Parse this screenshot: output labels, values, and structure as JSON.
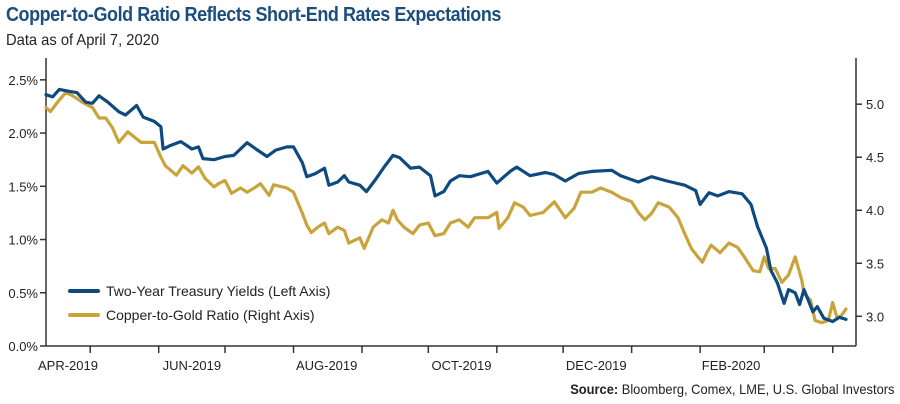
{
  "header": {
    "title": "Copper-to-Gold Ratio Reflects Short-End Rates Expectations",
    "subtitle": "Data as of April 7, 2020"
  },
  "footer": {
    "source_label": "Source:",
    "source_text": " Bloomberg, Comex, LME, U.S. Global Investors"
  },
  "colors": {
    "treasury": "#0f4a7f",
    "copper_gold": "#c9a43c",
    "axis": "#333333"
  },
  "chart_data": {
    "type": "line",
    "title": "Copper-to-Gold Ratio Reflects Short-End Rates Expectations",
    "subtitle": "Data as of April 7, 2020",
    "x_range": [
      "2019-04-11",
      "2020-04-07"
    ],
    "x_ticks": [
      "2019-05-01",
      "2019-06-01",
      "2019-07-01",
      "2019-08-01",
      "2019-09-01",
      "2019-10-01",
      "2019-11-01",
      "2019-12-01",
      "2020-01-01",
      "2020-02-01",
      "2020-03-01",
      "2020-04-01"
    ],
    "x_tick_labels": [
      {
        "label": "APR-2019",
        "date": "2019-04-16"
      },
      {
        "label": "JUN-2019",
        "date": "2019-06-16"
      },
      {
        "label": "AUG-2019",
        "date": "2019-08-16"
      },
      {
        "label": "OCT-2019",
        "date": "2019-10-16"
      },
      {
        "label": "DEC-2019",
        "date": "2019-12-16"
      },
      {
        "label": "FEB-2020",
        "date": "2020-02-15"
      }
    ],
    "y_left": {
      "range": [
        0,
        2.63
      ],
      "ticks": [
        0,
        0.5,
        1.0,
        1.5,
        2.0,
        2.5
      ],
      "tick_labels": [
        "0.0%",
        "0.5%",
        "1.0%",
        "1.5%",
        "2.0%",
        "2.5%"
      ]
    },
    "y_right": {
      "range": [
        2.72,
        5.36
      ],
      "ticks": [
        3.0,
        3.5,
        4.0,
        4.5,
        5.0
      ],
      "tick_labels": [
        "3.0",
        "3.5",
        "4.0",
        "4.5",
        "5.0"
      ]
    },
    "grid": false,
    "legend_placement": "bottom-left",
    "series": [
      {
        "name": "Two-Year Treasury Yields (Left Axis)",
        "axis": "left",
        "points": [
          [
            "2019-04-11",
            2.36
          ],
          [
            "2019-04-14",
            2.34
          ],
          [
            "2019-04-17",
            2.41
          ],
          [
            "2019-04-22",
            2.39
          ],
          [
            "2019-04-25",
            2.38
          ],
          [
            "2019-04-29",
            2.29
          ],
          [
            "2019-05-02",
            2.28
          ],
          [
            "2019-05-05",
            2.35
          ],
          [
            "2019-05-09",
            2.29
          ],
          [
            "2019-05-14",
            2.2
          ],
          [
            "2019-05-17",
            2.17
          ],
          [
            "2019-05-22",
            2.26
          ],
          [
            "2019-05-25",
            2.15
          ],
          [
            "2019-05-30",
            2.11
          ],
          [
            "2019-06-02",
            2.06
          ],
          [
            "2019-06-03",
            1.85
          ],
          [
            "2019-06-06",
            1.88
          ],
          [
            "2019-06-11",
            1.92
          ],
          [
            "2019-06-16",
            1.85
          ],
          [
            "2019-06-19",
            1.87
          ],
          [
            "2019-06-21",
            1.76
          ],
          [
            "2019-06-26",
            1.75
          ],
          [
            "2019-07-01",
            1.78
          ],
          [
            "2019-07-05",
            1.79
          ],
          [
            "2019-07-11",
            1.91
          ],
          [
            "2019-07-15",
            1.85
          ],
          [
            "2019-07-20",
            1.78
          ],
          [
            "2019-07-24",
            1.84
          ],
          [
            "2019-07-29",
            1.87
          ],
          [
            "2019-08-01",
            1.87
          ],
          [
            "2019-08-05",
            1.72
          ],
          [
            "2019-08-07",
            1.59
          ],
          [
            "2019-08-11",
            1.62
          ],
          [
            "2019-08-15",
            1.67
          ],
          [
            "2019-08-17",
            1.51
          ],
          [
            "2019-08-21",
            1.54
          ],
          [
            "2019-08-24",
            1.6
          ],
          [
            "2019-08-26",
            1.54
          ],
          [
            "2019-08-31",
            1.51
          ],
          [
            "2019-09-03",
            1.45
          ],
          [
            "2019-09-07",
            1.56
          ],
          [
            "2019-09-11",
            1.68
          ],
          [
            "2019-09-15",
            1.79
          ],
          [
            "2019-09-18",
            1.77
          ],
          [
            "2019-09-23",
            1.67
          ],
          [
            "2019-09-27",
            1.68
          ],
          [
            "2019-10-02",
            1.6
          ],
          [
            "2019-10-04",
            1.41
          ],
          [
            "2019-10-08",
            1.45
          ],
          [
            "2019-10-11",
            1.55
          ],
          [
            "2019-10-15",
            1.6
          ],
          [
            "2019-10-20",
            1.59
          ],
          [
            "2019-10-28",
            1.64
          ],
          [
            "2019-11-01",
            1.53
          ],
          [
            "2019-11-07",
            1.64
          ],
          [
            "2019-11-10",
            1.68
          ],
          [
            "2019-11-16",
            1.6
          ],
          [
            "2019-11-23",
            1.63
          ],
          [
            "2019-11-27",
            1.61
          ],
          [
            "2019-12-02",
            1.55
          ],
          [
            "2019-12-08",
            1.62
          ],
          [
            "2019-12-14",
            1.64
          ],
          [
            "2019-12-23",
            1.65
          ],
          [
            "2019-12-27",
            1.6
          ],
          [
            "2020-01-04",
            1.54
          ],
          [
            "2020-01-10",
            1.59
          ],
          [
            "2020-01-17",
            1.55
          ],
          [
            "2020-01-25",
            1.51
          ],
          [
            "2020-01-30",
            1.46
          ],
          [
            "2020-02-01",
            1.33
          ],
          [
            "2020-02-05",
            1.44
          ],
          [
            "2020-02-09",
            1.41
          ],
          [
            "2020-02-14",
            1.45
          ],
          [
            "2020-02-20",
            1.43
          ],
          [
            "2020-02-24",
            1.33
          ],
          [
            "2020-02-27",
            1.12
          ],
          [
            "2020-03-02",
            0.92
          ],
          [
            "2020-03-04",
            0.71
          ],
          [
            "2020-03-07",
            0.59
          ],
          [
            "2020-03-10",
            0.4
          ],
          [
            "2020-03-12",
            0.53
          ],
          [
            "2020-03-15",
            0.5
          ],
          [
            "2020-03-17",
            0.39
          ],
          [
            "2020-03-19",
            0.53
          ],
          [
            "2020-03-23",
            0.32
          ],
          [
            "2020-03-25",
            0.37
          ],
          [
            "2020-03-28",
            0.26
          ],
          [
            "2020-04-01",
            0.23
          ],
          [
            "2020-04-04",
            0.27
          ],
          [
            "2020-04-07",
            0.25
          ]
        ]
      },
      {
        "name": "Copper-to-Gold Ratio (Right Axis)",
        "axis": "right",
        "points": [
          [
            "2019-04-11",
            4.97
          ],
          [
            "2019-04-13",
            4.93
          ],
          [
            "2019-04-17",
            5.04
          ],
          [
            "2019-04-20",
            5.11
          ],
          [
            "2019-04-23",
            5.08
          ],
          [
            "2019-04-28",
            5.01
          ],
          [
            "2019-05-02",
            4.97
          ],
          [
            "2019-05-05",
            4.87
          ],
          [
            "2019-05-08",
            4.87
          ],
          [
            "2019-05-11",
            4.78
          ],
          [
            "2019-05-14",
            4.64
          ],
          [
            "2019-05-18",
            4.74
          ],
          [
            "2019-05-24",
            4.64
          ],
          [
            "2019-05-30",
            4.64
          ],
          [
            "2019-06-02",
            4.5
          ],
          [
            "2019-06-04",
            4.42
          ],
          [
            "2019-06-09",
            4.33
          ],
          [
            "2019-06-12",
            4.42
          ],
          [
            "2019-06-16",
            4.35
          ],
          [
            "2019-06-19",
            4.41
          ],
          [
            "2019-06-22",
            4.3
          ],
          [
            "2019-06-26",
            4.22
          ],
          [
            "2019-06-28",
            4.25
          ],
          [
            "2019-07-01",
            4.28
          ],
          [
            "2019-07-04",
            4.16
          ],
          [
            "2019-07-08",
            4.21
          ],
          [
            "2019-07-11",
            4.17
          ],
          [
            "2019-07-15",
            4.22
          ],
          [
            "2019-07-17",
            4.25
          ],
          [
            "2019-07-21",
            4.14
          ],
          [
            "2019-07-23",
            4.24
          ],
          [
            "2019-07-29",
            4.21
          ],
          [
            "2019-08-01",
            4.17
          ],
          [
            "2019-08-05",
            3.97
          ],
          [
            "2019-08-07",
            3.86
          ],
          [
            "2019-08-09",
            3.79
          ],
          [
            "2019-08-12",
            3.84
          ],
          [
            "2019-08-15",
            3.88
          ],
          [
            "2019-08-17",
            3.78
          ],
          [
            "2019-08-21",
            3.84
          ],
          [
            "2019-08-24",
            3.81
          ],
          [
            "2019-08-26",
            3.69
          ],
          [
            "2019-08-31",
            3.74
          ],
          [
            "2019-09-02",
            3.64
          ],
          [
            "2019-09-06",
            3.84
          ],
          [
            "2019-09-10",
            3.91
          ],
          [
            "2019-09-13",
            3.88
          ],
          [
            "2019-09-15",
            4.0
          ],
          [
            "2019-09-17",
            3.91
          ],
          [
            "2019-09-20",
            3.84
          ],
          [
            "2019-09-24",
            3.78
          ],
          [
            "2019-09-27",
            3.86
          ],
          [
            "2019-10-01",
            3.88
          ],
          [
            "2019-10-04",
            3.76
          ],
          [
            "2019-10-08",
            3.78
          ],
          [
            "2019-10-11",
            3.88
          ],
          [
            "2019-10-15",
            3.91
          ],
          [
            "2019-10-19",
            3.84
          ],
          [
            "2019-10-22",
            3.93
          ],
          [
            "2019-10-28",
            3.93
          ],
          [
            "2019-11-01",
            3.98
          ],
          [
            "2019-11-02",
            3.83
          ],
          [
            "2019-11-06",
            3.93
          ],
          [
            "2019-11-09",
            4.07
          ],
          [
            "2019-11-13",
            4.03
          ],
          [
            "2019-11-16",
            3.95
          ],
          [
            "2019-11-22",
            3.98
          ],
          [
            "2019-11-27",
            4.08
          ],
          [
            "2019-12-02",
            3.93
          ],
          [
            "2019-12-06",
            4.02
          ],
          [
            "2019-12-09",
            4.17
          ],
          [
            "2019-12-14",
            4.17
          ],
          [
            "2019-12-18",
            4.21
          ],
          [
            "2019-12-23",
            4.17
          ],
          [
            "2019-12-27",
            4.12
          ],
          [
            "2020-01-01",
            4.08
          ],
          [
            "2020-01-04",
            3.98
          ],
          [
            "2020-01-07",
            3.91
          ],
          [
            "2020-01-10",
            3.97
          ],
          [
            "2020-01-13",
            4.07
          ],
          [
            "2020-01-18",
            4.03
          ],
          [
            "2020-01-22",
            3.93
          ],
          [
            "2020-01-25",
            3.78
          ],
          [
            "2020-01-28",
            3.64
          ],
          [
            "2020-01-31",
            3.56
          ],
          [
            "2020-02-02",
            3.51
          ],
          [
            "2020-02-04",
            3.6
          ],
          [
            "2020-02-06",
            3.67
          ],
          [
            "2020-02-10",
            3.6
          ],
          [
            "2020-02-14",
            3.69
          ],
          [
            "2020-02-18",
            3.65
          ],
          [
            "2020-02-21",
            3.56
          ],
          [
            "2020-02-25",
            3.43
          ],
          [
            "2020-02-28",
            3.42
          ],
          [
            "2020-03-01",
            3.56
          ],
          [
            "2020-03-03",
            3.45
          ],
          [
            "2020-03-06",
            3.45
          ],
          [
            "2020-03-09",
            3.32
          ],
          [
            "2020-03-12",
            3.39
          ],
          [
            "2020-03-15",
            3.56
          ],
          [
            "2020-03-18",
            3.34
          ],
          [
            "2020-03-19",
            3.22
          ],
          [
            "2020-03-22",
            3.15
          ],
          [
            "2020-03-24",
            2.96
          ],
          [
            "2020-03-27",
            2.94
          ],
          [
            "2020-03-30",
            2.96
          ],
          [
            "2020-04-01",
            3.13
          ],
          [
            "2020-04-03",
            2.98
          ],
          [
            "2020-04-05",
            3.01
          ],
          [
            "2020-04-07",
            3.07
          ]
        ]
      }
    ]
  }
}
